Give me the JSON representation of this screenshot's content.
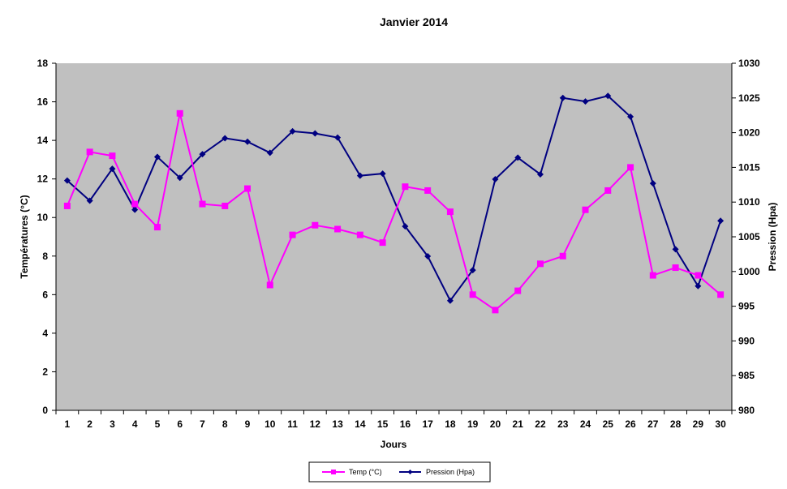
{
  "chart_data": {
    "type": "line",
    "title": "Janvier 2014",
    "xlabel": "Jours",
    "ylabel_left": "Températures (°C)",
    "ylabel_right": "Pression (Hpa)",
    "x": [
      1,
      2,
      3,
      4,
      5,
      6,
      7,
      8,
      9,
      10,
      11,
      12,
      13,
      14,
      15,
      16,
      17,
      18,
      19,
      20,
      21,
      22,
      23,
      24,
      25,
      26,
      27,
      28,
      29,
      30
    ],
    "ylim_left": [
      0,
      18
    ],
    "yticks_left": [
      0,
      2,
      4,
      6,
      8,
      10,
      12,
      14,
      16,
      18
    ],
    "ylim_right": [
      980,
      1030
    ],
    "yticks_right": [
      980,
      985,
      990,
      995,
      1000,
      1005,
      1010,
      1015,
      1020,
      1025,
      1030
    ],
    "grid": false,
    "legend_position": "bottom",
    "plot_background": "#C0C0C0",
    "series": [
      {
        "name": "Temp (°C)",
        "axis": "left",
        "color": "#FF00FF",
        "marker": "square",
        "values": [
          10.6,
          13.4,
          13.2,
          10.7,
          9.5,
          15.4,
          10.7,
          10.6,
          11.5,
          6.5,
          9.1,
          9.6,
          9.4,
          9.1,
          8.7,
          11.6,
          11.4,
          10.3,
          6.0,
          5.2,
          6.2,
          7.6,
          8.0,
          10.4,
          11.4,
          12.6,
          7.0,
          7.4,
          7.0,
          6.0
        ]
      },
      {
        "name": "Pression (Hpa)",
        "axis": "right",
        "color": "#000080",
        "marker": "diamond",
        "values": [
          1013.1,
          1010.2,
          1014.8,
          1008.9,
          1016.5,
          1013.5,
          1016.9,
          1019.2,
          1018.7,
          1017.1,
          1020.2,
          1019.9,
          1019.3,
          1013.8,
          1014.1,
          1006.5,
          1002.2,
          995.8,
          1000.2,
          1013.3,
          1016.4,
          1014.0,
          1025.0,
          1024.5,
          1025.3,
          1022.3,
          1012.7,
          1003.2,
          997.9,
          1007.3
        ]
      }
    ]
  }
}
